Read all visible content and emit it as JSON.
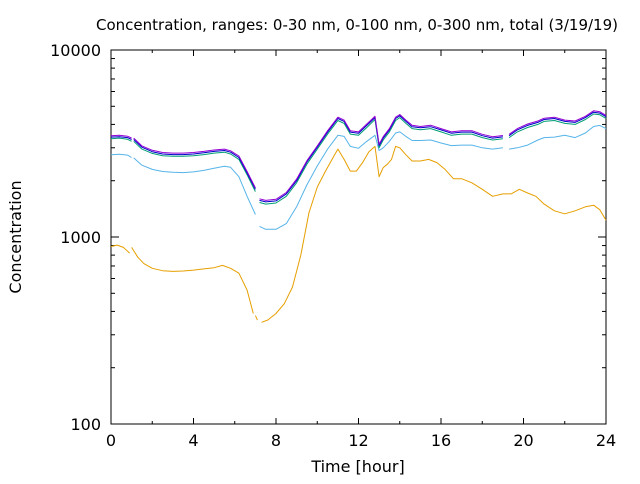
{
  "chart_data": {
    "type": "line",
    "title": "Concentration, ranges: 0-30 nm, 0-100 nm, 0-300 nm, total (3/19/19)",
    "xlabel": "Time [hour]",
    "ylabel": "Concentration",
    "xlim": [
      0,
      24
    ],
    "ylim": [
      100,
      10000
    ],
    "yscale": "log",
    "grid": false,
    "legend": "none",
    "x_ticks": [
      0,
      4,
      8,
      12,
      16,
      20,
      24
    ],
    "x_tick_labels": [
      "0",
      "4",
      "8",
      "12",
      "16",
      "20",
      "24"
    ],
    "y_ticks": [
      100,
      1000,
      10000
    ],
    "y_tick_labels": [
      "100",
      "1000",
      "10000"
    ],
    "series": [
      {
        "color": "#e69f00",
        "segments": [
          {
            "x": [
              0,
              0.3,
              0.6,
              0.9
            ],
            "y": [
              890,
              905,
              880,
              820
            ]
          },
          {
            "x": [
              1.0,
              1.3,
              1.6,
              2.0,
              2.5,
              3,
              3.5,
              4,
              4.5,
              5.0,
              5.4,
              5.8,
              6.2,
              6.6,
              6.9
            ],
            "y": [
              880,
              780,
              720,
              680,
              660,
              655,
              658,
              665,
              675,
              685,
              705,
              680,
              640,
              520,
              390
            ]
          },
          {
            "x": [
              7.0,
              7.1
            ],
            "y": [
              380,
              360
            ]
          },
          {
            "x": [
              7.3,
              7.6,
              8.0,
              8.4,
              8.8,
              9.2,
              9.6,
              10.0,
              10.4,
              10.8,
              11.0,
              11.3,
              11.6,
              11.9,
              12.2,
              12.5,
              12.8,
              13.0,
              13.2,
              13.4,
              13.6,
              13.8,
              14.0,
              14.3,
              14.6,
              15.0,
              15.4,
              15.8,
              16.2,
              16.6,
              17.0,
              17.5,
              18.0,
              18.5,
              19.0,
              19.4,
              19.8,
              20.2,
              20.6,
              21.0,
              21.5,
              22.0,
              22.5,
              23.0,
              23.4,
              23.7,
              24.0
            ],
            "y": [
              350,
              360,
              390,
              440,
              540,
              800,
              1350,
              1850,
              2250,
              2700,
              2950,
              2600,
              2250,
              2250,
              2500,
              2850,
              3050,
              2100,
              2350,
              2450,
              2600,
              3050,
              3000,
              2750,
              2550,
              2550,
              2600,
              2500,
              2300,
              2050,
              2050,
              1950,
              1800,
              1650,
              1700,
              1700,
              1800,
              1720,
              1650,
              1500,
              1380,
              1330,
              1380,
              1450,
              1480,
              1400,
              1230
            ]
          }
        ]
      },
      {
        "color": "#56b4e9",
        "segments": [
          {
            "x": [
              0,
              0.4,
              0.8,
              1.0
            ],
            "y": [
              2750,
              2770,
              2740,
              2660
            ]
          },
          {
            "x": [
              1.1,
              1.5,
              2.0,
              2.5,
              3,
              3.5,
              4,
              4.5,
              5.0,
              5.5,
              5.8,
              6.2,
              6.6,
              7.0
            ],
            "y": [
              2650,
              2420,
              2300,
              2240,
              2220,
              2210,
              2230,
              2270,
              2330,
              2390,
              2360,
              2100,
              1650,
              1320
            ]
          },
          {
            "x": [
              7.2,
              7.5,
              8.0,
              8.5,
              9.0,
              9.5,
              10.0,
              10.5,
              11.0,
              11.3,
              11.6,
              12.0,
              12.4,
              12.8,
              13.0,
              13.2,
              13.5,
              13.8,
              14.0,
              14.3,
              14.6,
              15.0,
              15.5,
              16.0,
              16.5,
              17.0,
              17.5,
              18.0,
              18.5,
              19.0
            ],
            "y": [
              1140,
              1100,
              1100,
              1180,
              1450,
              1900,
              2400,
              2950,
              3500,
              3450,
              3050,
              2980,
              3250,
              3500,
              2900,
              3000,
              3250,
              3600,
              3650,
              3450,
              3280,
              3280,
              3300,
              3180,
              3080,
              3100,
              3100,
              3000,
              2950,
              3000
            ]
          },
          {
            "x": [
              19.3,
              19.7,
              20.2,
              20.7,
              21.0,
              21.5,
              22.0,
              22.5,
              23.0,
              23.4,
              23.7,
              24.0
            ],
            "y": [
              2950,
              3000,
              3100,
              3300,
              3400,
              3420,
              3500,
              3400,
              3600,
              3900,
              3950,
              3800
            ]
          }
        ]
      },
      {
        "color": "#009e73",
        "segments": [
          {
            "x": [
              0,
              0.4,
              0.8,
              1.0
            ],
            "y": [
              3350,
              3380,
              3330,
              3250
            ]
          },
          {
            "x": [
              1.1,
              1.5,
              2.0,
              2.5,
              3,
              3.5,
              4,
              4.5,
              5.0,
              5.5,
              5.8,
              6.2,
              6.6,
              7.0
            ],
            "y": [
              3250,
              2950,
              2800,
              2720,
              2700,
              2700,
              2720,
              2760,
              2810,
              2840,
              2780,
              2600,
              2150,
              1750
            ]
          },
          {
            "x": [
              7.2,
              7.5,
              8.0,
              8.5,
              9.0,
              9.5,
              10.0,
              10.5,
              11.0,
              11.3,
              11.6,
              12.0,
              12.4,
              12.8,
              13.0,
              13.2,
              13.5,
              13.8,
              14.0,
              14.3,
              14.6,
              15.0,
              15.5,
              16.0,
              16.5,
              17.0,
              17.5,
              18.0,
              18.5,
              19.0
            ],
            "y": [
              1530,
              1500,
              1520,
              1650,
              1950,
              2450,
              2950,
              3550,
              4200,
              4050,
              3550,
              3500,
              3850,
              4250,
              3000,
              3300,
              3650,
              4200,
              4350,
              4050,
              3800,
              3750,
              3800,
              3650,
              3500,
              3550,
              3550,
              3400,
              3300,
              3350
            ]
          },
          {
            "x": [
              19.3,
              19.7,
              20.2,
              20.7,
              21.0,
              21.5,
              22.0,
              22.5,
              23.0,
              23.4,
              23.7,
              24.0
            ],
            "y": [
              3400,
              3650,
              3850,
              4000,
              4150,
              4200,
              4050,
              4000,
              4250,
              4550,
              4500,
              4300
            ]
          }
        ]
      },
      {
        "color": "#0000cc",
        "segments": [
          {
            "x": [
              0,
              0.4,
              0.8,
              1.0
            ],
            "y": [
              3420,
              3440,
              3400,
              3320
            ]
          },
          {
            "x": [
              1.1,
              1.5,
              2.0,
              2.5,
              3,
              3.5,
              4,
              4.5,
              5.0,
              5.5,
              5.8,
              6.2,
              6.6,
              7.0
            ],
            "y": [
              3320,
              3020,
              2860,
              2780,
              2760,
              2760,
              2780,
              2820,
              2870,
              2900,
              2840,
              2660,
              2200,
              1800
            ]
          },
          {
            "x": [
              7.2,
              7.5,
              8.0,
              8.5,
              9.0,
              9.5,
              10.0,
              10.5,
              11.0,
              11.3,
              11.6,
              12.0,
              12.4,
              12.8,
              13.0,
              13.2,
              13.5,
              13.8,
              14.0,
              14.3,
              14.6,
              15.0,
              15.5,
              16.0,
              16.5,
              17.0,
              17.5,
              18.0,
              18.5,
              19.0
            ],
            "y": [
              1570,
              1540,
              1560,
              1700,
              2000,
              2520,
              3020,
              3640,
              4300,
              4150,
              3640,
              3590,
              3950,
              4350,
              3080,
              3380,
              3740,
              4300,
              4450,
              4150,
              3890,
              3840,
              3890,
              3740,
              3590,
              3640,
              3640,
              3480,
              3380,
              3430
            ]
          },
          {
            "x": [
              19.3,
              19.7,
              20.2,
              20.7,
              21.0,
              21.5,
              22.0,
              22.5,
              23.0,
              23.4,
              23.7,
              24.0
            ],
            "y": [
              3480,
              3740,
              3950,
              4100,
              4250,
              4300,
              4150,
              4100,
              4350,
              4650,
              4600,
              4400
            ]
          }
        ]
      },
      {
        "color": "#9400d3",
        "segments": [
          {
            "x": [
              0,
              0.4,
              0.8,
              1.0
            ],
            "y": [
              3480,
              3500,
              3460,
              3380
            ]
          },
          {
            "x": [
              1.1,
              1.5,
              2.0,
              2.5,
              3,
              3.5,
              4,
              4.5,
              5.0,
              5.5,
              5.8,
              6.2,
              6.6,
              7.0
            ],
            "y": [
              3380,
              3070,
              2910,
              2830,
              2810,
              2810,
              2830,
              2870,
              2920,
              2950,
              2890,
              2710,
              2240,
              1830
            ]
          },
          {
            "x": [
              7.2,
              7.5,
              8.0,
              8.5,
              9.0,
              9.5,
              10.0,
              10.5,
              11.0,
              11.3,
              11.6,
              12.0,
              12.4,
              12.8,
              13.0,
              13.2,
              13.5,
              13.8,
              14.0,
              14.3,
              14.6,
              15.0,
              15.5,
              16.0,
              16.5,
              17.0,
              17.5,
              18.0,
              18.5,
              19.0
            ],
            "y": [
              1600,
              1570,
              1590,
              1730,
              2040,
              2560,
              3070,
              3700,
              4370,
              4220,
              3700,
              3650,
              4020,
              4420,
              3130,
              3440,
              3800,
              4370,
              4520,
              4220,
              3960,
              3900,
              3960,
              3800,
              3650,
              3700,
              3700,
              3540,
              3440,
              3490
            ]
          },
          {
            "x": [
              19.3,
              19.7,
              20.2,
              20.7,
              21.0,
              21.5,
              22.0,
              22.5,
              23.0,
              23.4,
              23.7,
              24.0
            ],
            "y": [
              3540,
              3800,
              4020,
              4170,
              4320,
              4370,
              4220,
              4170,
              4420,
              4730,
              4680,
              4470
            ]
          }
        ]
      }
    ]
  }
}
